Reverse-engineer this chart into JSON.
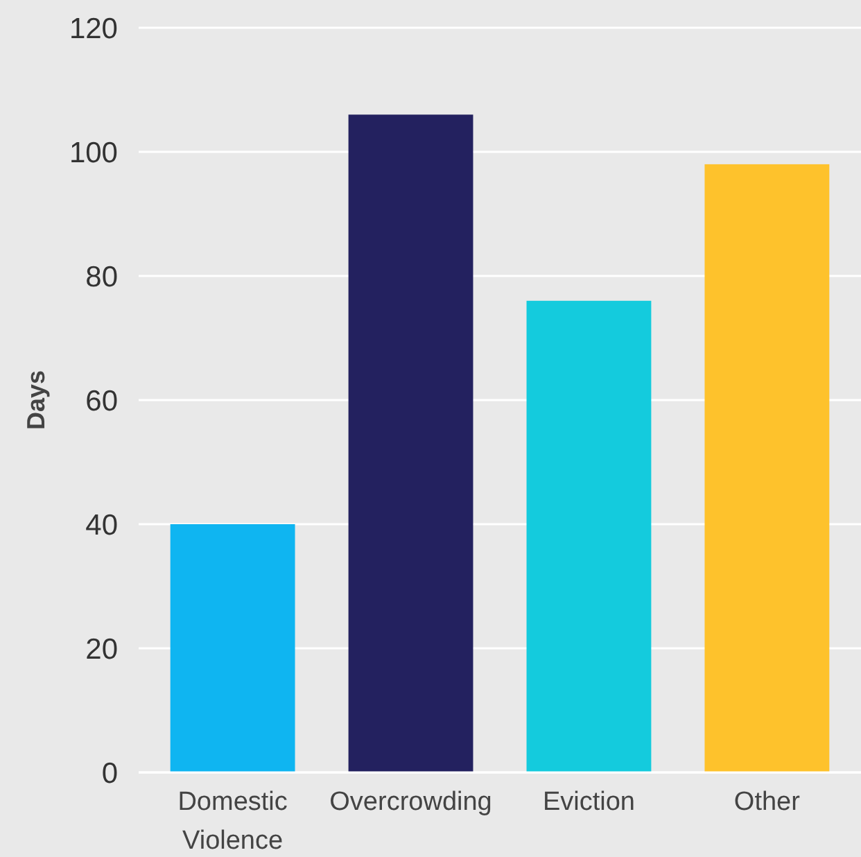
{
  "chart_data": {
    "type": "bar",
    "ylabel": "Days",
    "categories": [
      "Domestic Violence",
      "Overcrowding",
      "Eviction",
      "Other"
    ],
    "values": [
      40,
      106,
      76,
      98
    ],
    "colors": [
      "#0fb5f1",
      "#23215f",
      "#14cbdd",
      "#fec22c"
    ],
    "ylim": [
      0,
      120
    ],
    "yticks": [
      0,
      20,
      40,
      60,
      80,
      100,
      120
    ],
    "grid": "y"
  }
}
